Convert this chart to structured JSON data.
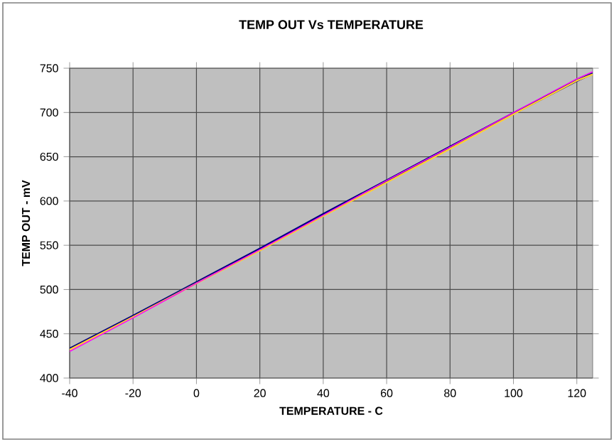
{
  "chart_data": {
    "type": "line",
    "title": "TEMP OUT  Vs TEMPERATURE",
    "xlabel": "TEMPERATURE - C",
    "ylabel": "TEMP OUT - mV",
    "x": [
      -40,
      -20,
      0,
      20,
      40,
      60,
      80,
      100,
      120,
      125
    ],
    "series": [
      {
        "color": "#000080",
        "values": [
          433,
          470,
          508,
          546,
          585,
          623,
          661,
          699,
          736,
          744
        ]
      },
      {
        "color": "#ffcc33",
        "values": [
          432,
          469,
          507,
          544,
          583,
          621,
          659,
          698,
          736,
          743
        ]
      },
      {
        "color": "#ff00ff",
        "values": [
          430,
          468,
          507,
          545,
          584,
          623,
          661,
          700,
          738,
          746
        ]
      }
    ],
    "xlim": [
      -40,
      125
    ],
    "ylim": [
      400,
      750
    ],
    "xticks": [
      -40,
      -20,
      0,
      20,
      40,
      60,
      80,
      100,
      120
    ],
    "yticks": [
      400,
      450,
      500,
      550,
      600,
      650,
      700,
      750
    ],
    "grid": true,
    "marker": "none",
    "line_style": "solid"
  }
}
